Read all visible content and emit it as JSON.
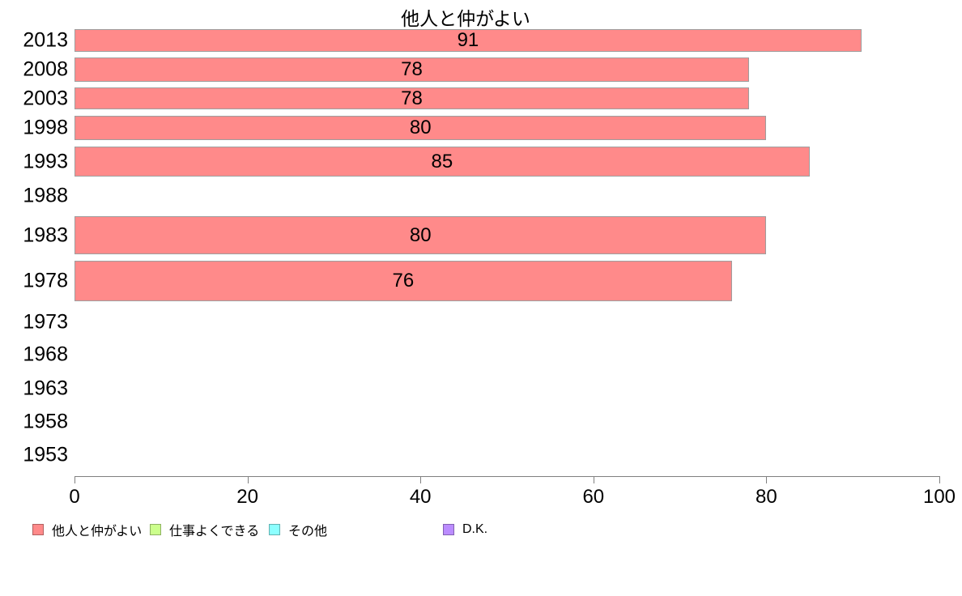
{
  "chart_data": {
    "type": "bar",
    "orientation": "horizontal",
    "title": "他人と仲がよい",
    "categories": [
      "2013",
      "2008",
      "2003",
      "1998",
      "1993",
      "1988",
      "1983",
      "1978",
      "1973",
      "1968",
      "1963",
      "1958",
      "1953"
    ],
    "values": [
      91,
      78,
      78,
      80,
      85,
      null,
      80,
      76,
      null,
      null,
      null,
      null,
      null
    ],
    "xlim": [
      0,
      100
    ],
    "x_ticks": [
      0,
      20,
      40,
      60,
      80,
      100
    ],
    "grid": false,
    "legend_position": "bottom",
    "colors": {
      "bar_fill": "#FF8A8A",
      "bar_border": "#9E9E9E",
      "axis": "#808080",
      "text": "#000000"
    },
    "legend": [
      {
        "label": "他人と仲がよい",
        "color": "#FF8A8A"
      },
      {
        "label": "仕事よくできる",
        "color": "#CCFF8C"
      },
      {
        "label": "その他",
        "color": "#8CFFFF"
      },
      {
        "label": "D.K.",
        "color": "#BB8CFF"
      }
    ]
  }
}
